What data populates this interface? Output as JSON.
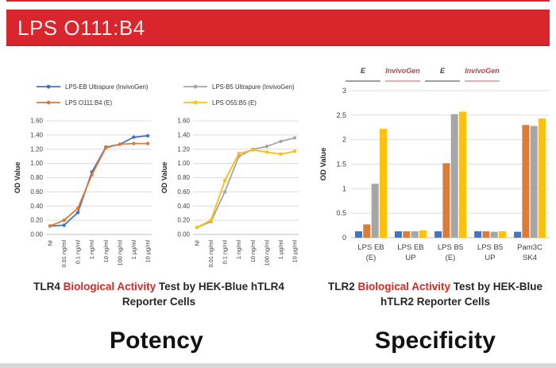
{
  "header": {
    "title": "LPS O111:B4",
    "bar_color": "#d8262c"
  },
  "captions": {
    "left": {
      "pre": "TLR4 ",
      "highlight": "Biological Activity",
      "post": " Test by HEK-Blue hTLR4 Reporter Cells",
      "highlight_color": "#d22b25"
    },
    "right": {
      "pre": "TLR2 ",
      "highlight": "Biological Activity",
      "post": " Test by HEK-Blue hTLR2 Reporter Cells",
      "highlight_color": "#d22b25"
    }
  },
  "labels": {
    "potency": "Potency",
    "specificity": "Specificity"
  },
  "chart_data": [
    {
      "id": "tlr4-eb-line",
      "type": "line",
      "title": "",
      "xlabel": "",
      "ylabel": "OD Value",
      "ylim": [
        0,
        1.6
      ],
      "yticks": [
        0,
        0.2,
        0.4,
        0.6,
        0.8,
        1.0,
        1.2,
        1.4,
        1.6
      ],
      "ytick_labels": [
        "0.00",
        "0.20",
        "0.40",
        "0.60",
        "0.80",
        "1.00",
        "1.20",
        "1.40",
        "1.60"
      ],
      "grid": true,
      "legend_position": "top",
      "categories": [
        "NI",
        "0.01 ng/ml",
        "0.1 ng/ml",
        "1 ng/ml",
        "10 ng/ml",
        "100 ng/ml",
        "1 µg/ml",
        "10 µg/ml"
      ],
      "series": [
        {
          "name": "LPS-EB Ultrapure (InvivoGen)",
          "color": "#4472c4",
          "values": [
            0.12,
            0.13,
            0.31,
            0.88,
            1.23,
            1.27,
            1.37,
            1.39
          ]
        },
        {
          "name": "LPS O111:B4 (E)",
          "color": "#e07b35",
          "values": [
            0.12,
            0.2,
            0.37,
            0.84,
            1.22,
            1.27,
            1.28,
            1.28
          ]
        }
      ]
    },
    {
      "id": "tlr4-b5-line",
      "type": "line",
      "title": "",
      "xlabel": "",
      "ylabel": "OD Value",
      "ylim": [
        0,
        1.6
      ],
      "yticks": [
        0,
        0.2,
        0.4,
        0.6,
        0.8,
        1.0,
        1.2,
        1.4,
        1.6
      ],
      "ytick_labels": [
        "0.00",
        "0.20",
        "0.40",
        "0.60",
        "0.80",
        "1.00",
        "1.20",
        "1.40",
        "1.60"
      ],
      "grid": true,
      "legend_position": "top",
      "categories": [
        "NI",
        "0.01 ng/ml",
        "0.1 ng/ml",
        "1 ng/ml",
        "10 ng/ml",
        "100 ng/ml",
        "1 µg/ml",
        "10 µg/ml"
      ],
      "series": [
        {
          "name": "LPS-B5 Ultrapure (InvivoGen)",
          "color": "#a6a6a6",
          "values": [
            0.1,
            0.18,
            0.6,
            1.1,
            1.2,
            1.24,
            1.31,
            1.36
          ]
        },
        {
          "name": "LPS O55:B5 (E)",
          "color": "#fdc010",
          "values": [
            0.1,
            0.2,
            0.76,
            1.14,
            1.19,
            1.16,
            1.13,
            1.17
          ]
        }
      ]
    },
    {
      "id": "tlr2-bar",
      "type": "bar",
      "title": "",
      "xlabel": "",
      "ylabel": "OD Value",
      "ylim": [
        0,
        3
      ],
      "yticks": [
        0,
        0.5,
        1,
        1.5,
        2,
        2.5,
        3
      ],
      "ytick_labels": [
        "0",
        "0.5",
        "1",
        "1.5",
        "2",
        "2.5",
        "3"
      ],
      "grid": true,
      "categories": [
        [
          "LPS EB",
          "(E)"
        ],
        [
          "LPS EB",
          "UP"
        ],
        [
          "LPS B5",
          "(E)"
        ],
        [
          "LPS B5",
          "UP"
        ],
        [
          "Pam3C",
          "SK4"
        ]
      ],
      "series": [
        {
          "name": "blue",
          "color": "#4472c4",
          "values": [
            0.13,
            0.13,
            0.13,
            0.13,
            0.12
          ]
        },
        {
          "name": "orange",
          "color": "#e07b35",
          "values": [
            0.27,
            0.13,
            1.52,
            0.13,
            2.3
          ]
        },
        {
          "name": "gray",
          "color": "#a6a6a6",
          "values": [
            1.1,
            0.13,
            2.52,
            0.12,
            2.28
          ]
        },
        {
          "name": "yellow",
          "color": "#fdc010",
          "values": [
            2.22,
            0.15,
            2.57,
            0.13,
            2.43
          ]
        }
      ],
      "annotations": [
        {
          "text": "E",
          "text_color": "#3f3f3f",
          "line_color": "#808080",
          "group": 0
        },
        {
          "text": "InvivoGen",
          "text_color": "#b2494d",
          "line_color": "#d99694",
          "group": 1
        },
        {
          "text": "E",
          "text_color": "#3f3f3f",
          "line_color": "#808080",
          "group": 2
        },
        {
          "text": "InvivoGen",
          "text_color": "#b2494d",
          "line_color": "#d99694",
          "group": 3
        }
      ]
    }
  ]
}
